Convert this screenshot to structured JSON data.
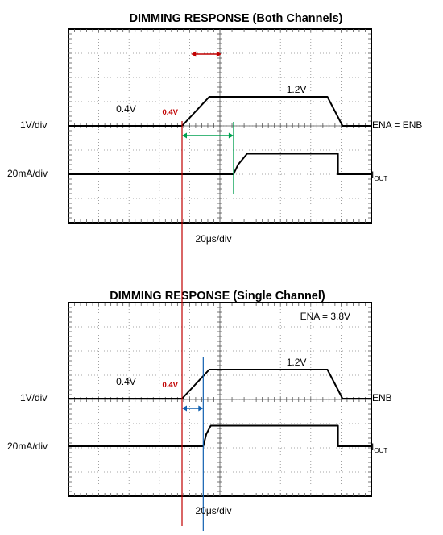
{
  "chart_data": [
    {
      "type": "line",
      "title": "DIMMING RESPONSE (Both Channels)",
      "xlabel": "20μs/div",
      "x_unit": "div",
      "xlim": [
        0,
        10
      ],
      "grid": true,
      "grid_divisions": {
        "x": 10,
        "y": 8
      },
      "series": [
        {
          "name": "ENA = ENB",
          "scale": "1V/div",
          "color": "#000000",
          "x": [
            0,
            3.75,
            4.05,
            4.65,
            8.55,
            9.05,
            10
          ],
          "y": [
            0,
            0,
            0.4,
            1.2,
            1.2,
            0,
            0
          ],
          "point_labels": [
            {
              "x": 1.9,
              "y": 0.4,
              "text": "0.4V"
            },
            {
              "x": 7.2,
              "y": 1.2,
              "text": "1.2V"
            }
          ]
        },
        {
          "name": "IOUT",
          "scale": "20mA/div",
          "color": "#000000",
          "x": [
            0,
            5.45,
            5.6,
            5.9,
            8.9,
            8.9,
            10
          ],
          "y": [
            0,
            0,
            0.4,
            0.85,
            0.85,
            0,
            0
          ]
        }
      ],
      "annotations": [
        {
          "text": "0.4V",
          "color": "#c00000",
          "x": 3.75
        },
        {
          "type": "marker",
          "color": "#00a050",
          "x": 5.45
        },
        {
          "type": "arrow",
          "color": "#c00000",
          "x_from": 4.05,
          "x_to": 5.05
        },
        {
          "type": "arrow",
          "color": "#00a050",
          "x_from": 3.75,
          "x_to": 5.45
        }
      ]
    },
    {
      "type": "line",
      "title": "DIMMING RESPONSE (Single Channel)",
      "xlabel": "20μs/div",
      "x_unit": "div",
      "xlim": [
        0,
        10
      ],
      "grid": true,
      "grid_divisions": {
        "x": 10,
        "y": 8
      },
      "corner_label": "ENA = 3.8V",
      "series": [
        {
          "name": "ENB",
          "scale": "1V/div",
          "color": "#000000",
          "x": [
            0,
            3.75,
            4.05,
            4.65,
            8.55,
            9.05,
            10
          ],
          "y": [
            0,
            0,
            0.4,
            1.2,
            1.2,
            0,
            0
          ],
          "point_labels": [
            {
              "x": 1.9,
              "y": 0.4,
              "text": "0.4V"
            },
            {
              "x": 7.2,
              "y": 1.2,
              "text": "1.2V"
            }
          ]
        },
        {
          "name": "IOUT",
          "scale": "20mA/div",
          "color": "#000000",
          "x": [
            0,
            4.45,
            4.55,
            4.7,
            8.9,
            8.9,
            10
          ],
          "y": [
            0,
            0,
            0.5,
            0.85,
            0.85,
            0,
            0
          ]
        }
      ],
      "annotations": [
        {
          "text": "0.4V",
          "color": "#c00000",
          "x": 3.75
        },
        {
          "type": "marker",
          "color": "#1060b0",
          "x": 4.45
        },
        {
          "type": "arrow",
          "color": "#1060b0",
          "x_from": 3.75,
          "x_to": 4.45
        }
      ]
    }
  ],
  "iout_label": {
    "main": "I",
    "sub": "OUT"
  },
  "shared_marker": {
    "color": "#c00000",
    "x": 3.75
  },
  "colors": {
    "trace": "#000000",
    "grid": "#888888",
    "frame": "#000000",
    "red": "#c00000",
    "green": "#00a050",
    "blue": "#1060b0"
  }
}
